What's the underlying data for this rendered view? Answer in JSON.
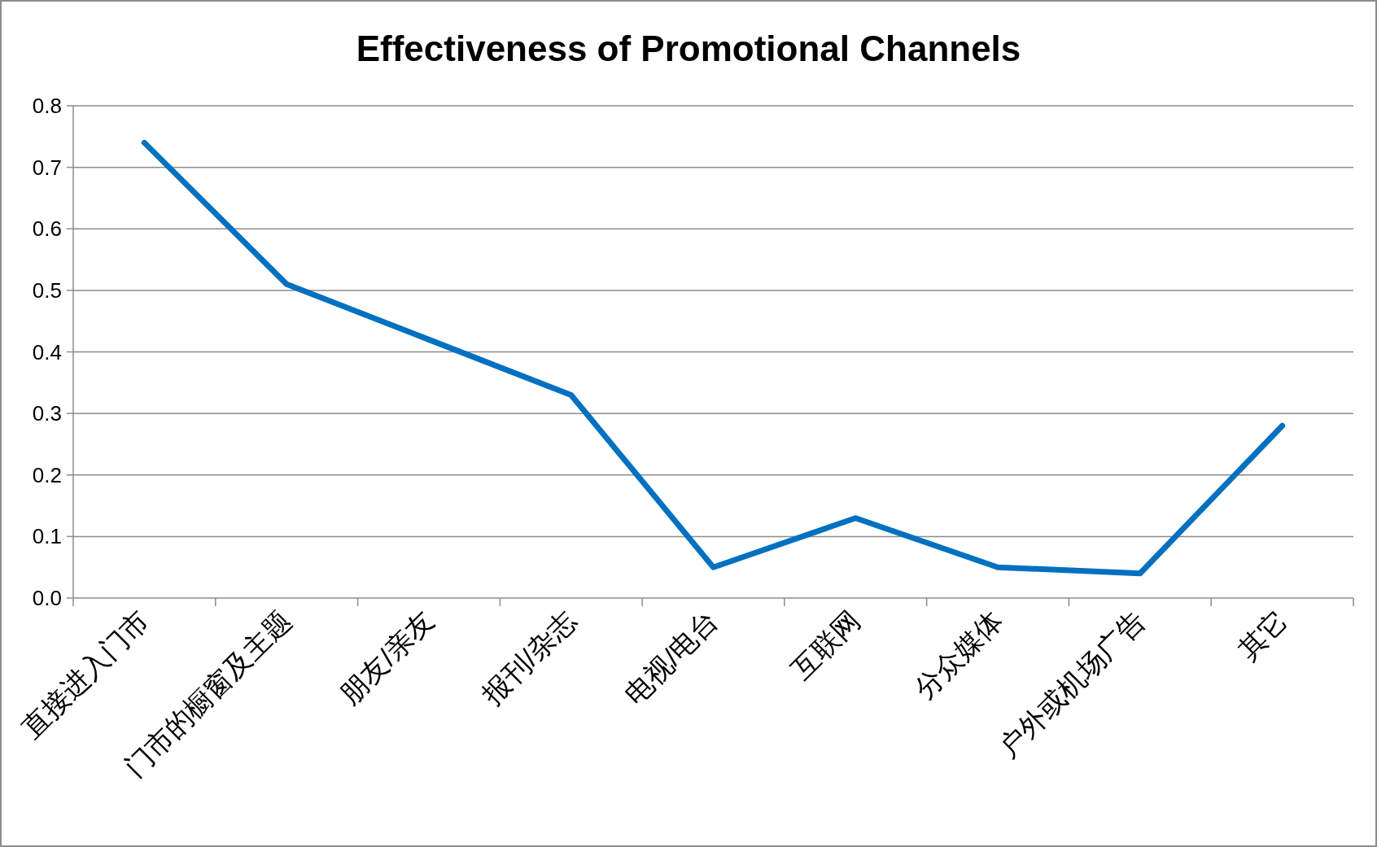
{
  "chart_data": {
    "type": "line",
    "title": "Effectiveness of Promotional Channels",
    "categories": [
      "直接进入门市",
      "门市的橱窗及主题",
      "朋友/亲友",
      "报刊/杂志",
      "电视/电台",
      "互联网",
      "分众媒体",
      "户外或机场广告",
      "其它"
    ],
    "series": [
      {
        "color": "#0070c0",
        "values": [
          0.74,
          0.51,
          0.42,
          0.33,
          0.05,
          0.13,
          0.05,
          0.04,
          0.28
        ]
      }
    ],
    "ylim": [
      0,
      0.8
    ],
    "yticks": [
      {
        "value": 0,
        "label": "0.0"
      },
      0.1,
      0.2,
      0.3,
      0.4,
      0.5,
      0.6,
      0.7,
      0.8
    ],
    "grid": "y",
    "marker": "none",
    "line_style": "solid"
  }
}
